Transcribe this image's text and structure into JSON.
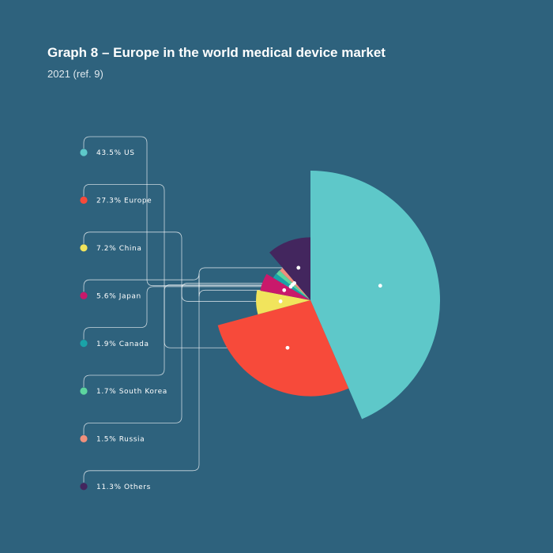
{
  "title": "Graph 8 – Europe in the world medical device market",
  "subtitle": "2021 (ref. 9)",
  "chart_data": {
    "type": "pie",
    "variant": "variable-radius pie (roseate)",
    "legend_position": "left",
    "slices": [
      {
        "label": "US",
        "value": 43.5,
        "display": "43.5% US",
        "color": "#5ec8c9"
      },
      {
        "label": "Europe",
        "value": 27.3,
        "display": "27.3% Europe",
        "color": "#f74a3a"
      },
      {
        "label": "China",
        "value": 7.2,
        "display": "7.2% China",
        "color": "#f1e45c"
      },
      {
        "label": "Japan",
        "value": 5.6,
        "display": "5.6% Japan",
        "color": "#c9196b"
      },
      {
        "label": "Canada",
        "value": 1.9,
        "display": "1.9% Canada",
        "color": "#1aa3a8"
      },
      {
        "label": "South Korea",
        "value": 1.7,
        "display": "1.7% South Korea",
        "color": "#5dd59f"
      },
      {
        "label": "Russia",
        "value": 1.5,
        "display": "1.5% Russia",
        "color": "#f0907c"
      },
      {
        "label": "Others",
        "value": 11.3,
        "display": "11.3% Others",
        "color": "#43265e"
      }
    ]
  }
}
